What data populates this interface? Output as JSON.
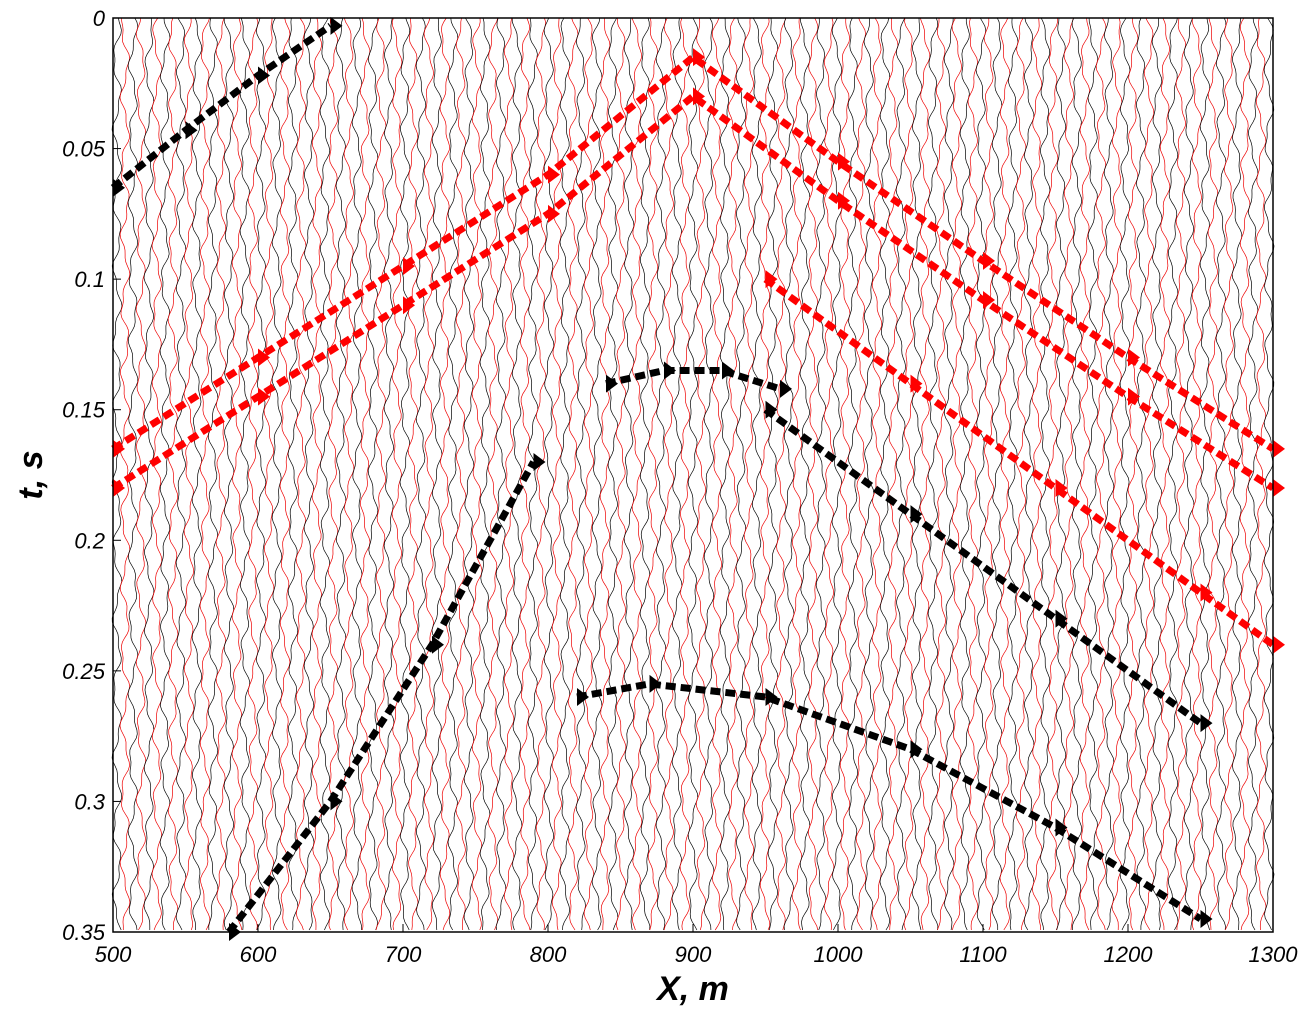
{
  "chart_data": {
    "type": "wiggle",
    "x_label": "X, m",
    "y_label": "t, s",
    "xlim": [
      500,
      1300
    ],
    "ylim": [
      0,
      0.35
    ],
    "y_inverted": true,
    "xticks": [
      500,
      600,
      700,
      800,
      900,
      1000,
      1100,
      1200,
      1300
    ],
    "yticks": [
      0,
      0.05,
      0.1,
      0.15,
      0.2,
      0.25,
      0.3,
      0.35
    ],
    "series": [
      {
        "color": "#000000",
        "x": [
          500,
          550,
          600,
          650
        ],
        "values": [
          0.065,
          0.043,
          0.022,
          0.003
        ]
      },
      {
        "color": "#ff0000",
        "x": [
          500,
          600,
          700,
          800,
          900,
          1000,
          1100,
          1200,
          1300
        ],
        "values": [
          0.165,
          0.13,
          0.095,
          0.06,
          0.015,
          0.055,
          0.093,
          0.13,
          0.165
        ]
      },
      {
        "color": "#ff0000",
        "x": [
          500,
          600,
          700,
          800,
          900,
          1000,
          1100,
          1200,
          1300
        ],
        "values": [
          0.18,
          0.145,
          0.11,
          0.075,
          0.03,
          0.07,
          0.108,
          0.145,
          0.18
        ]
      },
      {
        "color": "#000000",
        "x": [
          840,
          880,
          920,
          960
        ],
        "values": [
          0.14,
          0.135,
          0.135,
          0.142
        ]
      },
      {
        "color": "#000000",
        "x": [
          580,
          650,
          720,
          790
        ],
        "values": [
          0.35,
          0.3,
          0.24,
          0.17
        ]
      },
      {
        "color": "#000000",
        "x": [
          820,
          870,
          950,
          1050,
          1150,
          1250
        ],
        "values": [
          0.26,
          0.255,
          0.26,
          0.28,
          0.31,
          0.345
        ]
      },
      {
        "color": "#ff0000",
        "x": [
          950,
          1050,
          1150,
          1250,
          1300
        ],
        "values": [
          0.1,
          0.14,
          0.18,
          0.22,
          0.24
        ]
      },
      {
        "color": "#000000",
        "x": [
          950,
          1050,
          1150,
          1250
        ],
        "values": [
          0.15,
          0.19,
          0.23,
          0.27
        ]
      }
    ]
  }
}
